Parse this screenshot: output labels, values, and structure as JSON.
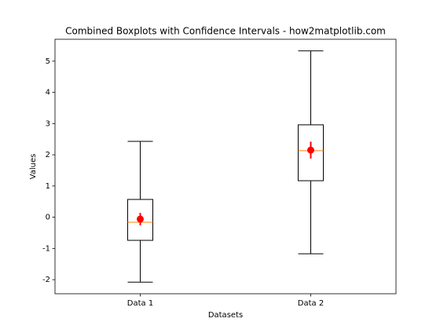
{
  "chart_data": {
    "type": "boxplot",
    "title": "Combined Boxplots with Confidence Intervals - how2matplotlib.com",
    "xlabel": "Datasets",
    "ylabel": "Values",
    "categories": [
      "Data 1",
      "Data 2"
    ],
    "boxes": [
      {
        "whislo": -2.08,
        "q1": -0.74,
        "med": -0.16,
        "q3": 0.57,
        "whishi": 2.43
      },
      {
        "whislo": -1.17,
        "q1": 1.17,
        "med": 2.13,
        "q3": 2.96,
        "whishi": 5.33
      }
    ],
    "means": [
      -0.06,
      2.15
    ],
    "mean_errors": [
      0.2,
      0.27
    ],
    "box_color": "#000000",
    "median_color": "#ff7f0e",
    "mean_color": "#ff0000",
    "ylim": [
      -2.45,
      5.7
    ],
    "yticks": [
      -2,
      -1,
      0,
      1,
      2,
      3,
      4,
      5
    ]
  }
}
